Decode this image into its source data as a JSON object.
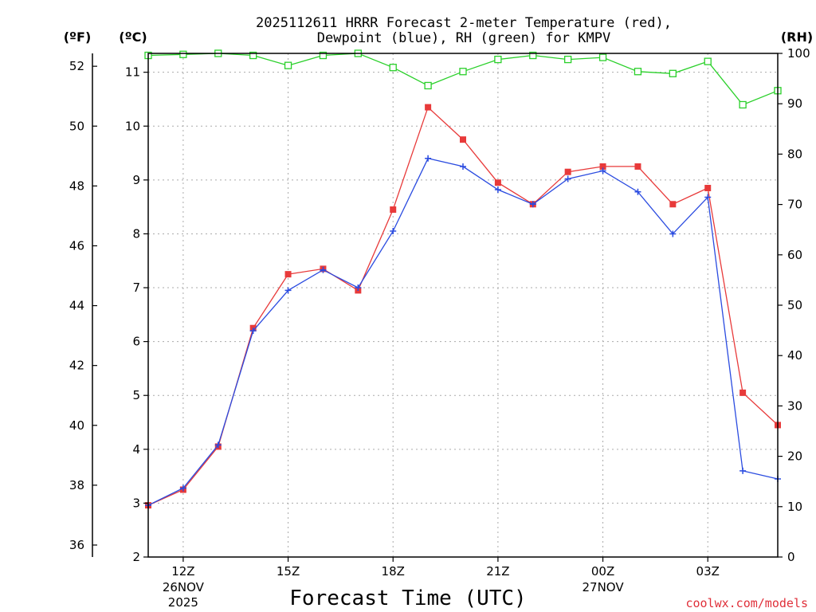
{
  "chart_data": {
    "type": "line",
    "title_line1": "2025112611 HRRR Forecast 2-meter Temperature (red),",
    "title_line2": "Dewpoint (blue), RH (green) for KMPV",
    "unit_f": "(ºF)",
    "unit_c": "(ºC)",
    "unit_rh": "(RH)",
    "xlabel": "Forecast Time (UTC)",
    "credit": "coolwx.com/models",
    "x_hours": [
      11,
      12,
      13,
      14,
      15,
      16,
      17,
      18,
      19,
      20,
      21,
      22,
      23,
      24,
      25,
      26,
      27,
      28,
      29
    ],
    "x_range": [
      11,
      29
    ],
    "x_ticks": [
      {
        "hour": 12,
        "label": "12Z",
        "sub1": "26NOV",
        "sub2": "2025"
      },
      {
        "hour": 15,
        "label": "15Z",
        "sub1": "",
        "sub2": ""
      },
      {
        "hour": 18,
        "label": "18Z",
        "sub1": "",
        "sub2": ""
      },
      {
        "hour": 21,
        "label": "21Z",
        "sub1": "",
        "sub2": ""
      },
      {
        "hour": 24,
        "label": "00Z",
        "sub1": "27NOV",
        "sub2": ""
      },
      {
        "hour": 27,
        "label": "03Z",
        "sub1": "",
        "sub2": ""
      }
    ],
    "celsius_range": [
      2,
      11.35
    ],
    "celsius_ticks": [
      2,
      3,
      4,
      5,
      6,
      7,
      8,
      9,
      10,
      11
    ],
    "fahrenheit_ticks": [
      36,
      38,
      40,
      42,
      44,
      46,
      48,
      50,
      52
    ],
    "rh_range": [
      0,
      100
    ],
    "rh_ticks": [
      0,
      10,
      20,
      30,
      40,
      50,
      60,
      70,
      80,
      90,
      100
    ],
    "series": [
      {
        "name": "Temperature",
        "unit": "C",
        "color": "#e83a3a",
        "marker": "square-filled",
        "values": [
          2.96,
          3.25,
          4.05,
          6.25,
          7.25,
          7.35,
          6.95,
          8.45,
          10.35,
          9.75,
          8.95,
          8.55,
          9.15,
          9.25,
          9.25,
          8.55,
          8.85,
          5.05,
          4.45
        ]
      },
      {
        "name": "Dewpoint",
        "unit": "C",
        "color": "#2a4be0",
        "marker": "plus",
        "values": [
          2.96,
          3.28,
          4.08,
          6.2,
          6.95,
          7.33,
          7.0,
          8.05,
          9.4,
          9.25,
          8.82,
          8.55,
          9.02,
          9.17,
          8.78,
          8.0,
          8.68,
          3.6,
          3.45
        ]
      },
      {
        "name": "RH",
        "unit": "%",
        "color": "#2ad02a",
        "marker": "square-open",
        "values": [
          99.6,
          99.8,
          100,
          99.6,
          97.6,
          99.6,
          100,
          97.2,
          93.6,
          96.4,
          98.8,
          99.6,
          98.8,
          99.2,
          96.4,
          96.0,
          98.4,
          89.8,
          92.6
        ]
      }
    ]
  }
}
